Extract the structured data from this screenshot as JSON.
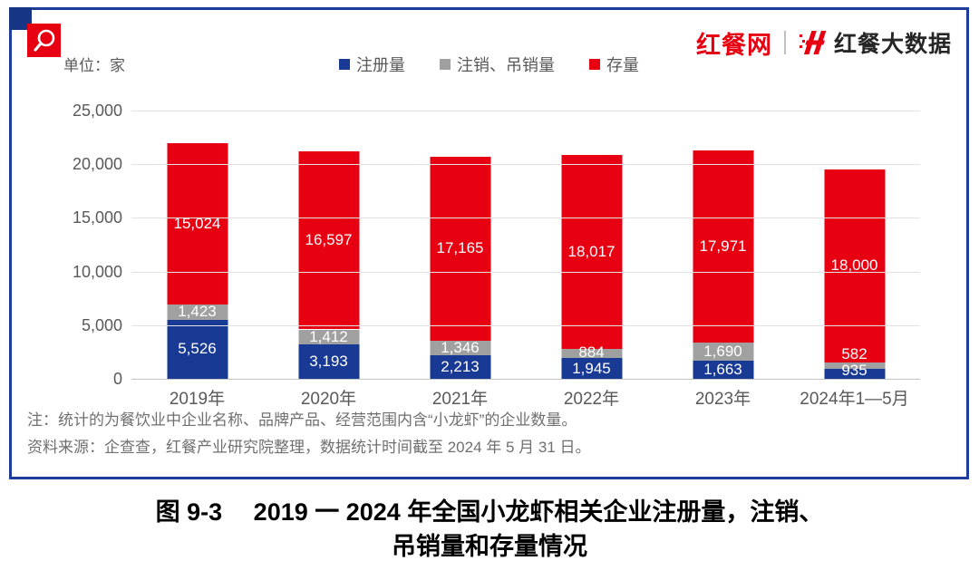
{
  "header": {
    "site_name": "红餐网",
    "brand_name": "红餐大数据"
  },
  "colors": {
    "accent_red": "#e60012",
    "bar_blue": "#183a94",
    "bar_gray": "#a0a0a0",
    "panel_border_blue": "#1e3c99",
    "corner_navy": "#173585",
    "text_gray": "#595959",
    "note_gray": "#6f6f6f"
  },
  "icons": {
    "magnifier": "magnifier-icon",
    "brand_mark": "brand-h-logo-icon"
  },
  "chart_data": {
    "type": "bar",
    "stacked": true,
    "title": "",
    "unit_label": "单位：家",
    "legend_position": "top",
    "grid": true,
    "categories": [
      "2019年",
      "2020年",
      "2021年",
      "2022年",
      "2023年",
      "2024年1—5月"
    ],
    "series": [
      {
        "name": "注册量",
        "color": "#183a94",
        "values": [
          5526,
          3193,
          2213,
          1945,
          1663,
          935
        ]
      },
      {
        "name": "注销、吊销量",
        "color": "#a0a0a0",
        "values": [
          1423,
          1412,
          1346,
          884,
          1690,
          582
        ]
      },
      {
        "name": "存量",
        "color": "#e60012",
        "values": [
          15024,
          16597,
          17165,
          18017,
          17971,
          18000
        ]
      }
    ],
    "ylim": [
      0,
      25000
    ],
    "yticks": [
      0,
      5000,
      10000,
      15000,
      20000,
      25000
    ],
    "ytick_labels": [
      "0",
      "5,000",
      "10,000",
      "15,000",
      "20,000",
      "25,000"
    ]
  },
  "notes": {
    "line1": "注：统计的为餐饮业中企业名称、品牌产品、经营范围内含“小龙虾”的企业数量。",
    "line2": "资料来源：企查查，红餐产业研究院整理，数据统计时间截至 2024 年 5 月 31 日。"
  },
  "caption": {
    "line1": "图 9-3　 2019 一 2024 年全国小龙虾相关企业注册量，注销、",
    "line2": "吊销量和存量情况"
  }
}
